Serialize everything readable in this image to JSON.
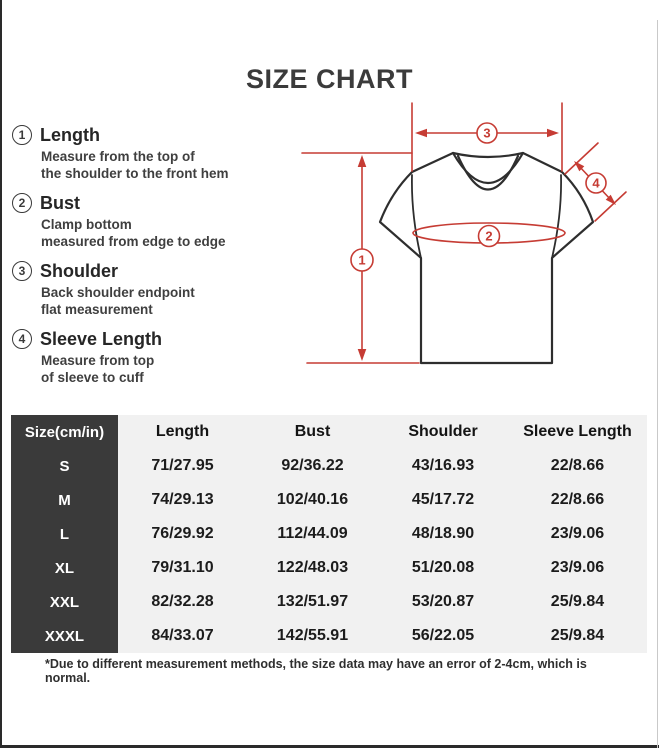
{
  "title": "SIZE CHART",
  "colors": {
    "accent_red": "#c63c34",
    "outline_ink": "#2e2e2e",
    "table_dark": "#3a3a3a",
    "table_bg": "#f1f1f1"
  },
  "instructions": [
    {
      "num": "1",
      "label": "Length",
      "desc_lines": [
        "Measure from the top of",
        "the shoulder to the front hem"
      ]
    },
    {
      "num": "2",
      "label": "Bust",
      "desc_lines": [
        "Clamp bottom",
        "measured from edge to edge"
      ]
    },
    {
      "num": "3",
      "label": "Shoulder",
      "desc_lines": [
        "Back shoulder endpoint",
        "flat measurement"
      ]
    },
    {
      "num": "4",
      "label": "Sleeve Length",
      "desc_lines": [
        "Measure from top",
        "of sleeve to cuff"
      ]
    }
  ],
  "diagram": {
    "labels": [
      "1",
      "2",
      "3",
      "4"
    ]
  },
  "table": {
    "headers": [
      "Size(cm/in)",
      "Length",
      "Bust",
      "Shoulder",
      "Sleeve Length"
    ],
    "rows": [
      [
        "S",
        "71/27.95",
        "92/36.22",
        "43/16.93",
        "22/8.66"
      ],
      [
        "M",
        "74/29.13",
        "102/40.16",
        "45/17.72",
        "22/8.66"
      ],
      [
        "L",
        "76/29.92",
        "112/44.09",
        "48/18.90",
        "23/9.06"
      ],
      [
        "XL",
        "79/31.10",
        "122/48.03",
        "51/20.08",
        "23/9.06"
      ],
      [
        "XXL",
        "82/32.28",
        "132/51.97",
        "53/20.87",
        "25/9.84"
      ],
      [
        "XXXL",
        "84/33.07",
        "142/55.91",
        "56/22.05",
        "25/9.84"
      ]
    ]
  },
  "note": "*Due to different measurement methods, the size data may have an error of 2-4cm, which is normal."
}
